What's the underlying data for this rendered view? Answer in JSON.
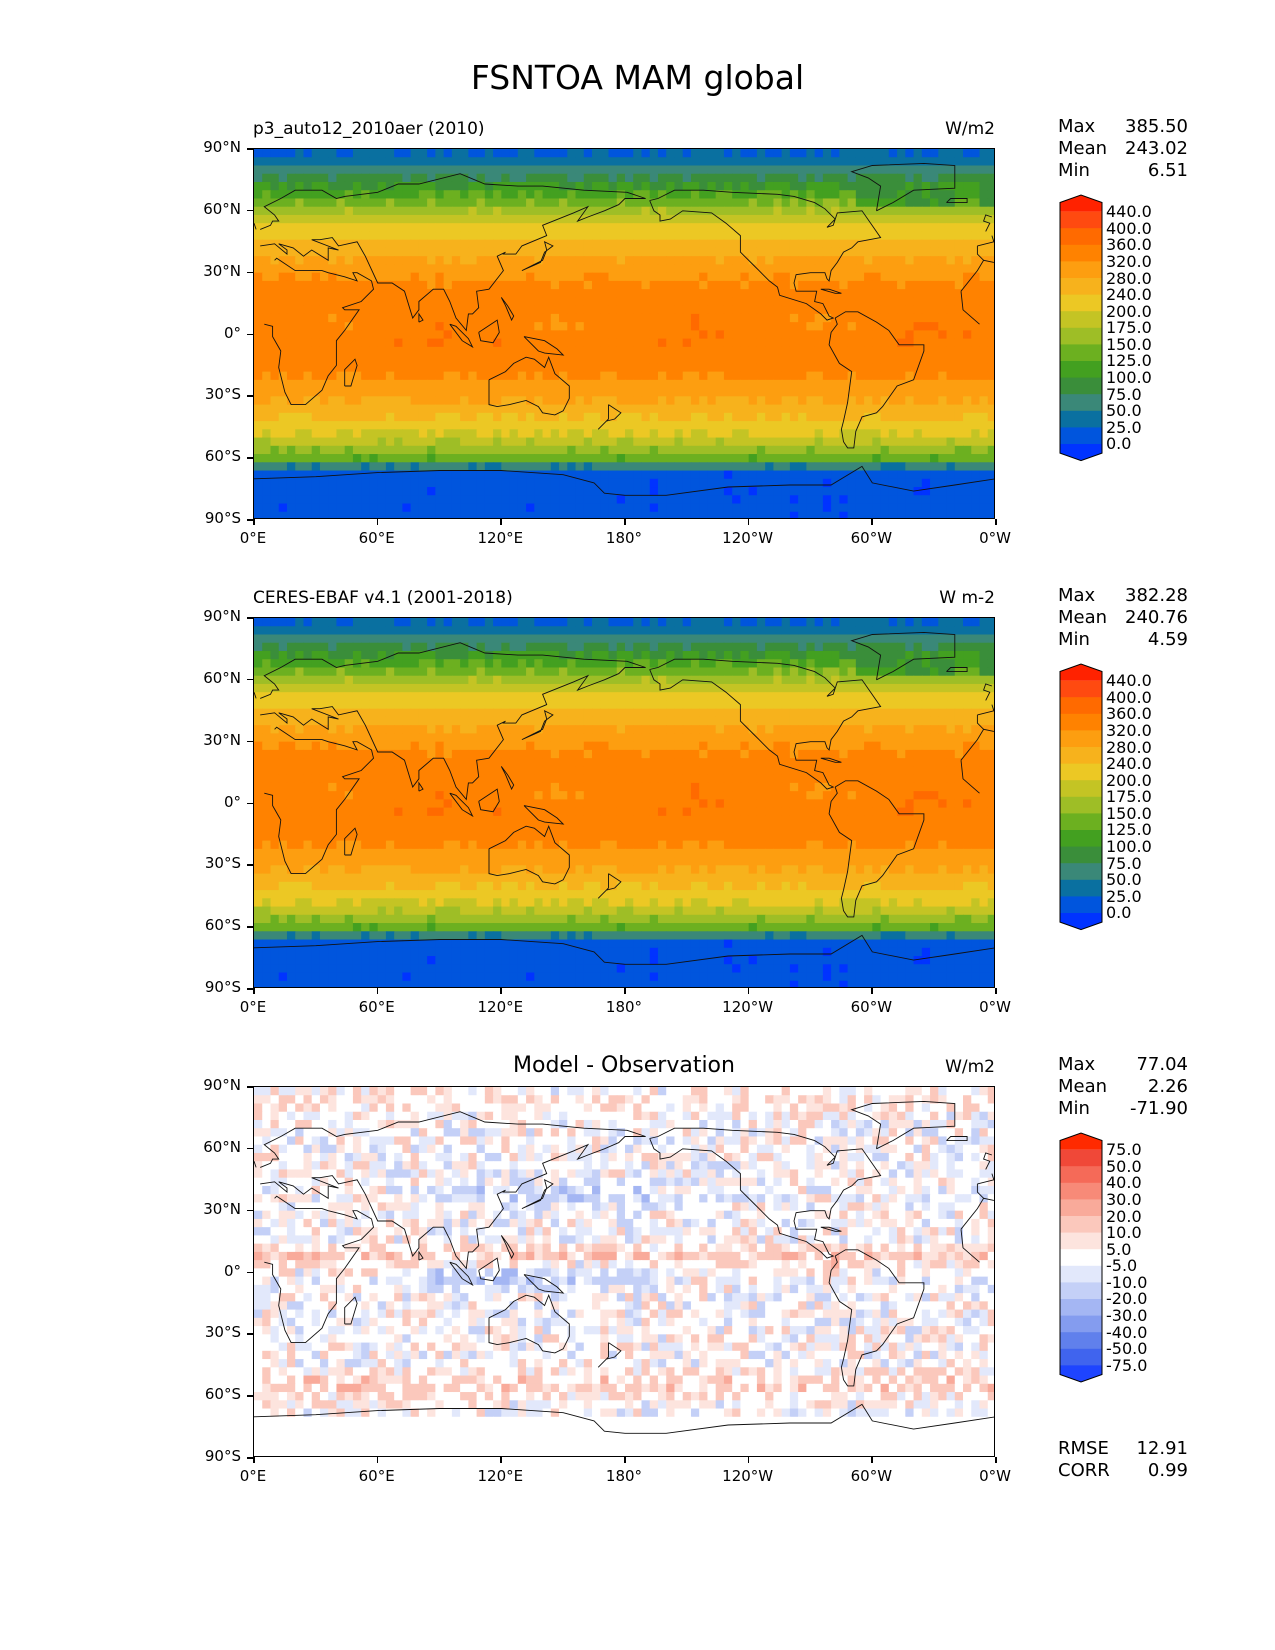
{
  "figure": {
    "title": "FSNTOA MAM global"
  },
  "axes": {
    "lat_labels": [
      "90°N",
      "60°N",
      "30°N",
      "0°",
      "30°S",
      "60°S",
      "90°S"
    ],
    "lon_labels": [
      "0°E",
      "60°E",
      "120°E",
      "180°",
      "120°W",
      "60°W",
      "0°W"
    ]
  },
  "panels": [
    {
      "left_title": "p3_auto12_2010aer (2010)",
      "center_title": "",
      "units": "W/m2",
      "stats": [
        {
          "label": "Max",
          "value": "385.50"
        },
        {
          "label": "Mean",
          "value": "243.02"
        },
        {
          "label": "Min",
          "value": "6.51"
        }
      ],
      "colorbar": {
        "labels": [
          "440.0",
          "400.0",
          "360.0",
          "320.0",
          "280.0",
          "240.0",
          "200.0",
          "175.0",
          "150.0",
          "125.0",
          "100.0",
          "75.0",
          "50.0",
          "25.0",
          "0.0"
        ],
        "colors": [
          "#ff2200",
          "#ff4a10",
          "#ff6a00",
          "#ff8200",
          "#fd9e10",
          "#f7b21c",
          "#ecc824",
          "#c4c424",
          "#9ebe26",
          "#6cb020",
          "#43a020",
          "#3a8e3a",
          "#3a8878",
          "#0a70a0",
          "#0055dd",
          "#0033ff"
        ]
      }
    },
    {
      "left_title": "CERES-EBAF v4.1 (2001-2018)",
      "center_title": "",
      "units": "W m-2",
      "stats": [
        {
          "label": "Max",
          "value": "382.28"
        },
        {
          "label": "Mean",
          "value": "240.76"
        },
        {
          "label": "Min",
          "value": "4.59"
        }
      ],
      "colorbar": {
        "labels": [
          "440.0",
          "400.0",
          "360.0",
          "320.0",
          "280.0",
          "240.0",
          "200.0",
          "175.0",
          "150.0",
          "125.0",
          "100.0",
          "75.0",
          "50.0",
          "25.0",
          "0.0"
        ],
        "colors": [
          "#ff2200",
          "#ff4a10",
          "#ff6a00",
          "#ff8200",
          "#fd9e10",
          "#f7b21c",
          "#ecc824",
          "#c4c424",
          "#9ebe26",
          "#6cb020",
          "#43a020",
          "#3a8e3a",
          "#3a8878",
          "#0a70a0",
          "#0055dd",
          "#0033ff"
        ]
      }
    },
    {
      "left_title": "",
      "center_title": "Model - Observation",
      "units": "W/m2",
      "stats": [
        {
          "label": "Max",
          "value": "77.04"
        },
        {
          "label": "Mean",
          "value": "2.26"
        },
        {
          "label": "Min",
          "value": "-71.90"
        }
      ],
      "extra_stats": [
        {
          "label": "RMSE",
          "value": "12.91"
        },
        {
          "label": "CORR",
          "value": "0.99"
        }
      ],
      "colorbar": {
        "labels": [
          "75.0",
          "50.0",
          "40.0",
          "30.0",
          "20.0",
          "10.0",
          "5.0",
          "-5.0",
          "-10.0",
          "-20.0",
          "-30.0",
          "-40.0",
          "-50.0",
          "-75.0"
        ],
        "colors": [
          "#ff2a00",
          "#f04838",
          "#f56a58",
          "#f78a78",
          "#f9aa9a",
          "#fbc8bc",
          "#fde4de",
          "#ffffff",
          "#e2e8fb",
          "#c4d0f7",
          "#a4b6f3",
          "#849cef",
          "#6080ec",
          "#4064ee",
          "#1e44ff"
        ]
      }
    }
  ]
}
